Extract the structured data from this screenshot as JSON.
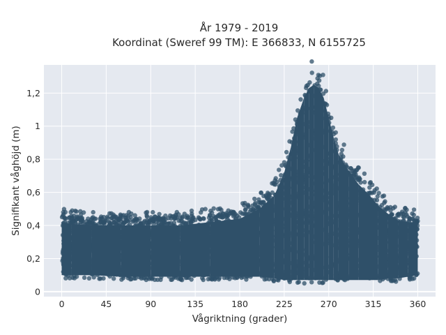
{
  "chart_data": {
    "type": "scatter",
    "title_line1": "År 1979 - 2019",
    "title_line2": "Koordinat (Sweref 99 TM): E 366833, N 6155725",
    "xlabel": "Vågriktning (grader)",
    "ylabel": "Signifikant våghöjd (m)",
    "xlim": [
      -18,
      378
    ],
    "ylim": [
      -0.03,
      1.37
    ],
    "xticks": [
      0,
      45,
      90,
      135,
      180,
      225,
      270,
      315,
      360
    ],
    "xtick_labels": [
      "0",
      "45",
      "90",
      "135",
      "180",
      "225",
      "270",
      "315",
      "360"
    ],
    "yticks": [
      0,
      0.2,
      0.4,
      0.6,
      0.8,
      1.0,
      1.2
    ],
    "ytick_labels": [
      "0",
      "0,2",
      "0,4",
      "0,6",
      "0,8",
      "1",
      "1,2"
    ],
    "grid": true,
    "marker_color": "#2f5069",
    "background_color": "#e5e9f0",
    "envelope": {
      "direction": [
        0,
        10,
        30,
        60,
        90,
        120,
        150,
        180,
        200,
        215,
        225,
        232,
        238,
        245,
        250,
        255,
        260,
        265,
        270,
        275,
        280,
        290,
        300,
        310,
        320,
        330,
        340,
        350,
        360
      ],
      "height_min": [
        0.08,
        0.08,
        0.08,
        0.07,
        0.07,
        0.07,
        0.07,
        0.07,
        0.07,
        0.06,
        0.05,
        0.05,
        0.05,
        0.05,
        0.05,
        0.05,
        0.05,
        0.05,
        0.05,
        0.05,
        0.05,
        0.05,
        0.05,
        0.05,
        0.05,
        0.06,
        0.06,
        0.07,
        0.08
      ],
      "height_max": [
        0.47,
        0.46,
        0.45,
        0.45,
        0.45,
        0.45,
        0.47,
        0.49,
        0.55,
        0.63,
        0.77,
        0.93,
        1.1,
        1.22,
        1.28,
        1.3,
        1.28,
        1.22,
        1.1,
        0.98,
        0.88,
        0.78,
        0.7,
        0.64,
        0.57,
        0.52,
        0.48,
        0.47,
        0.47
      ]
    }
  }
}
